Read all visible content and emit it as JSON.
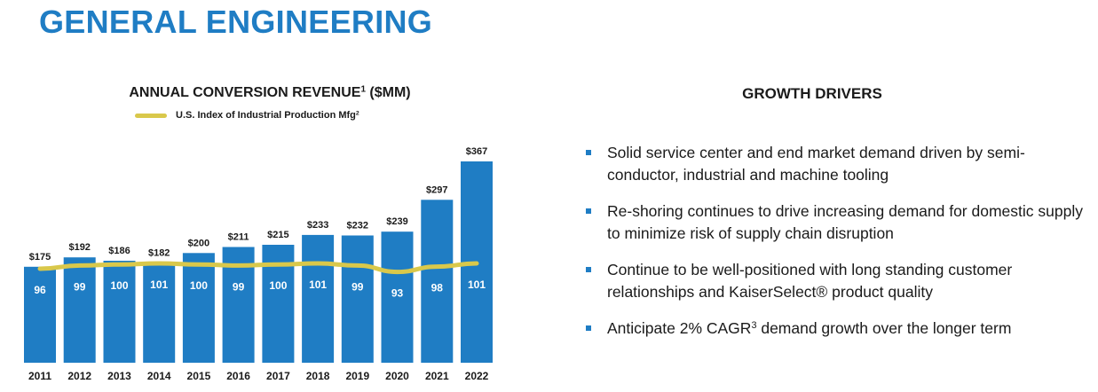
{
  "page": {
    "title": "GENERAL ENGINEERING"
  },
  "chart": {
    "title_main": "ANNUAL CONVERSION REVENUE",
    "title_sup": "1",
    "title_suffix": " ($MM)",
    "legend_label": "U.S. Index of Industrial Production Mfg",
    "legend_sup": "2"
  },
  "chart_data": {
    "type": "bar",
    "categories": [
      "2011",
      "2012",
      "2013",
      "2014",
      "2015",
      "2016",
      "2017",
      "2018",
      "2019",
      "2020",
      "2021",
      "2022"
    ],
    "series": [
      {
        "values": [
          175,
          192,
          186,
          182,
          200,
          211,
          215,
          233,
          232,
          239,
          297,
          367
        ],
        "labels": [
          "$175",
          "$192",
          "$186",
          "$182",
          "$200",
          "$211",
          "$215",
          "$233",
          "$232",
          "$239",
          "$297",
          "$367"
        ],
        "color": "#1f7dc4"
      },
      {
        "name": "U.S. Index of Industrial Production Mfg",
        "type": "line",
        "values": [
          96,
          99,
          100,
          101,
          100,
          99,
          100,
          101,
          99,
          93,
          98,
          101
        ],
        "color": "#d9c84b"
      }
    ],
    "title": "ANNUAL CONVERSION REVENUE ($MM)",
    "xlabel": "",
    "ylabel": "",
    "ylim": [
      0,
      370
    ],
    "grid": false,
    "legend": "top-left"
  },
  "drivers": {
    "title": "GROWTH DRIVERS",
    "bullets": [
      {
        "text": "Solid service center and end market demand driven by semi-conductor, industrial and machine tooling"
      },
      {
        "text": "Re-shoring continues to drive increasing demand for domestic supply to minimize risk of supply chain disruption"
      },
      {
        "text": "Continue to be well-positioned with long standing customer relationships and KaiserSelect® product quality"
      },
      {
        "text_pre": "Anticipate 2% CAGR",
        "text_sup": "3",
        "text_post": " demand growth over the longer term"
      }
    ]
  },
  "colors": {
    "brand_blue": "#1f7dc4",
    "index_line": "#d9c84b",
    "text": "#1a1a1a"
  }
}
